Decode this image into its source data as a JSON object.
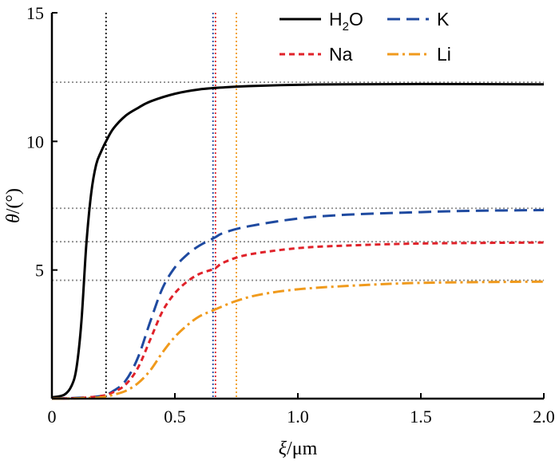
{
  "chart_data": {
    "type": "line",
    "xlabel": {
      "symbol": "ξ",
      "separator": "/",
      "unit": "μm"
    },
    "ylabel": {
      "symbol": "θ",
      "separator": "/",
      "unit": "(°)"
    },
    "xlim": [
      0,
      2.0
    ],
    "ylim": [
      0,
      15
    ],
    "x_ticks": [
      0,
      0.5,
      1.0,
      1.5,
      2.0
    ],
    "x_tick_labels": [
      "0",
      "0.5",
      "1.0",
      "1.5",
      "2.0"
    ],
    "y_ticks": [
      5,
      10,
      15
    ],
    "y_tick_labels": [
      "5",
      "10",
      "15"
    ],
    "legend_position": "top-right",
    "legend_layout": "two-column",
    "series": [
      {
        "name": "H2O",
        "legend_label": {
          "base": "H",
          "sub": "2",
          "rest": "O"
        },
        "color": "#000000",
        "style": "solid",
        "x": [
          0,
          0.05,
          0.08,
          0.1,
          0.12,
          0.14,
          0.16,
          0.18,
          0.2,
          0.22,
          0.25,
          0.3,
          0.35,
          0.4,
          0.5,
          0.6,
          0.7,
          0.8,
          1.0,
          1.2,
          1.5,
          2.0
        ],
        "y": [
          0.05,
          0.15,
          0.5,
          1.2,
          3.0,
          6.0,
          8.0,
          9.1,
          9.6,
          10.0,
          10.5,
          11.0,
          11.3,
          11.55,
          11.85,
          12.02,
          12.1,
          12.15,
          12.2,
          12.22,
          12.23,
          12.22
        ]
      },
      {
        "name": "K",
        "legend_label": {
          "base": "K",
          "sub": "",
          "rest": ""
        },
        "color": "#1f4aa0",
        "style": "dashed",
        "x": [
          0,
          0.1,
          0.2,
          0.25,
          0.3,
          0.35,
          0.4,
          0.45,
          0.5,
          0.55,
          0.6,
          0.66,
          0.7,
          0.8,
          1.0,
          1.2,
          1.5,
          1.7,
          2.0
        ],
        "y": [
          0,
          0.03,
          0.1,
          0.3,
          0.7,
          1.6,
          3.0,
          4.3,
          5.1,
          5.6,
          5.95,
          6.25,
          6.45,
          6.7,
          7.0,
          7.15,
          7.25,
          7.3,
          7.33
        ]
      },
      {
        "name": "Na",
        "legend_label": {
          "base": "Na",
          "sub": "",
          "rest": ""
        },
        "color": "#e0222a",
        "style": "dashed-short",
        "x": [
          0,
          0.1,
          0.2,
          0.25,
          0.3,
          0.35,
          0.4,
          0.45,
          0.5,
          0.55,
          0.6,
          0.66,
          0.7,
          0.8,
          1.0,
          1.2,
          1.5,
          2.0
        ],
        "y": [
          0,
          0.02,
          0.1,
          0.25,
          0.55,
          1.2,
          2.3,
          3.4,
          4.1,
          4.55,
          4.85,
          5.05,
          5.3,
          5.6,
          5.85,
          5.95,
          6.03,
          6.07
        ]
      },
      {
        "name": "Li",
        "legend_label": {
          "base": "Li",
          "sub": "",
          "rest": ""
        },
        "color": "#f09a1c",
        "style": "dash-dot",
        "x": [
          0,
          0.1,
          0.2,
          0.25,
          0.3,
          0.35,
          0.4,
          0.45,
          0.5,
          0.55,
          0.6,
          0.66,
          0.75,
          0.85,
          1.0,
          1.2,
          1.5,
          2.0
        ],
        "y": [
          0,
          0.01,
          0.05,
          0.15,
          0.3,
          0.6,
          1.1,
          1.8,
          2.4,
          2.85,
          3.2,
          3.45,
          3.8,
          4.05,
          4.25,
          4.38,
          4.5,
          4.55
        ]
      }
    ],
    "reference_lines": {
      "horizontal": [
        {
          "y": 12.3,
          "color": "#8a8a8a",
          "style": "dotted"
        },
        {
          "y": 7.4,
          "color": "#8a8a8a",
          "style": "dotted"
        },
        {
          "y": 6.1,
          "color": "#8a8a8a",
          "style": "dotted"
        },
        {
          "y": 4.6,
          "color": "#8a8a8a",
          "style": "dotted"
        }
      ],
      "vertical": [
        {
          "x": 0.22,
          "color": "#000000",
          "style": "dotted"
        },
        {
          "x": 0.655,
          "color": "#1f4aa0",
          "style": "dotted"
        },
        {
          "x": 0.665,
          "color": "#e0222a",
          "style": "dotted"
        },
        {
          "x": 0.75,
          "color": "#f09a1c",
          "style": "dotted"
        }
      ]
    }
  }
}
